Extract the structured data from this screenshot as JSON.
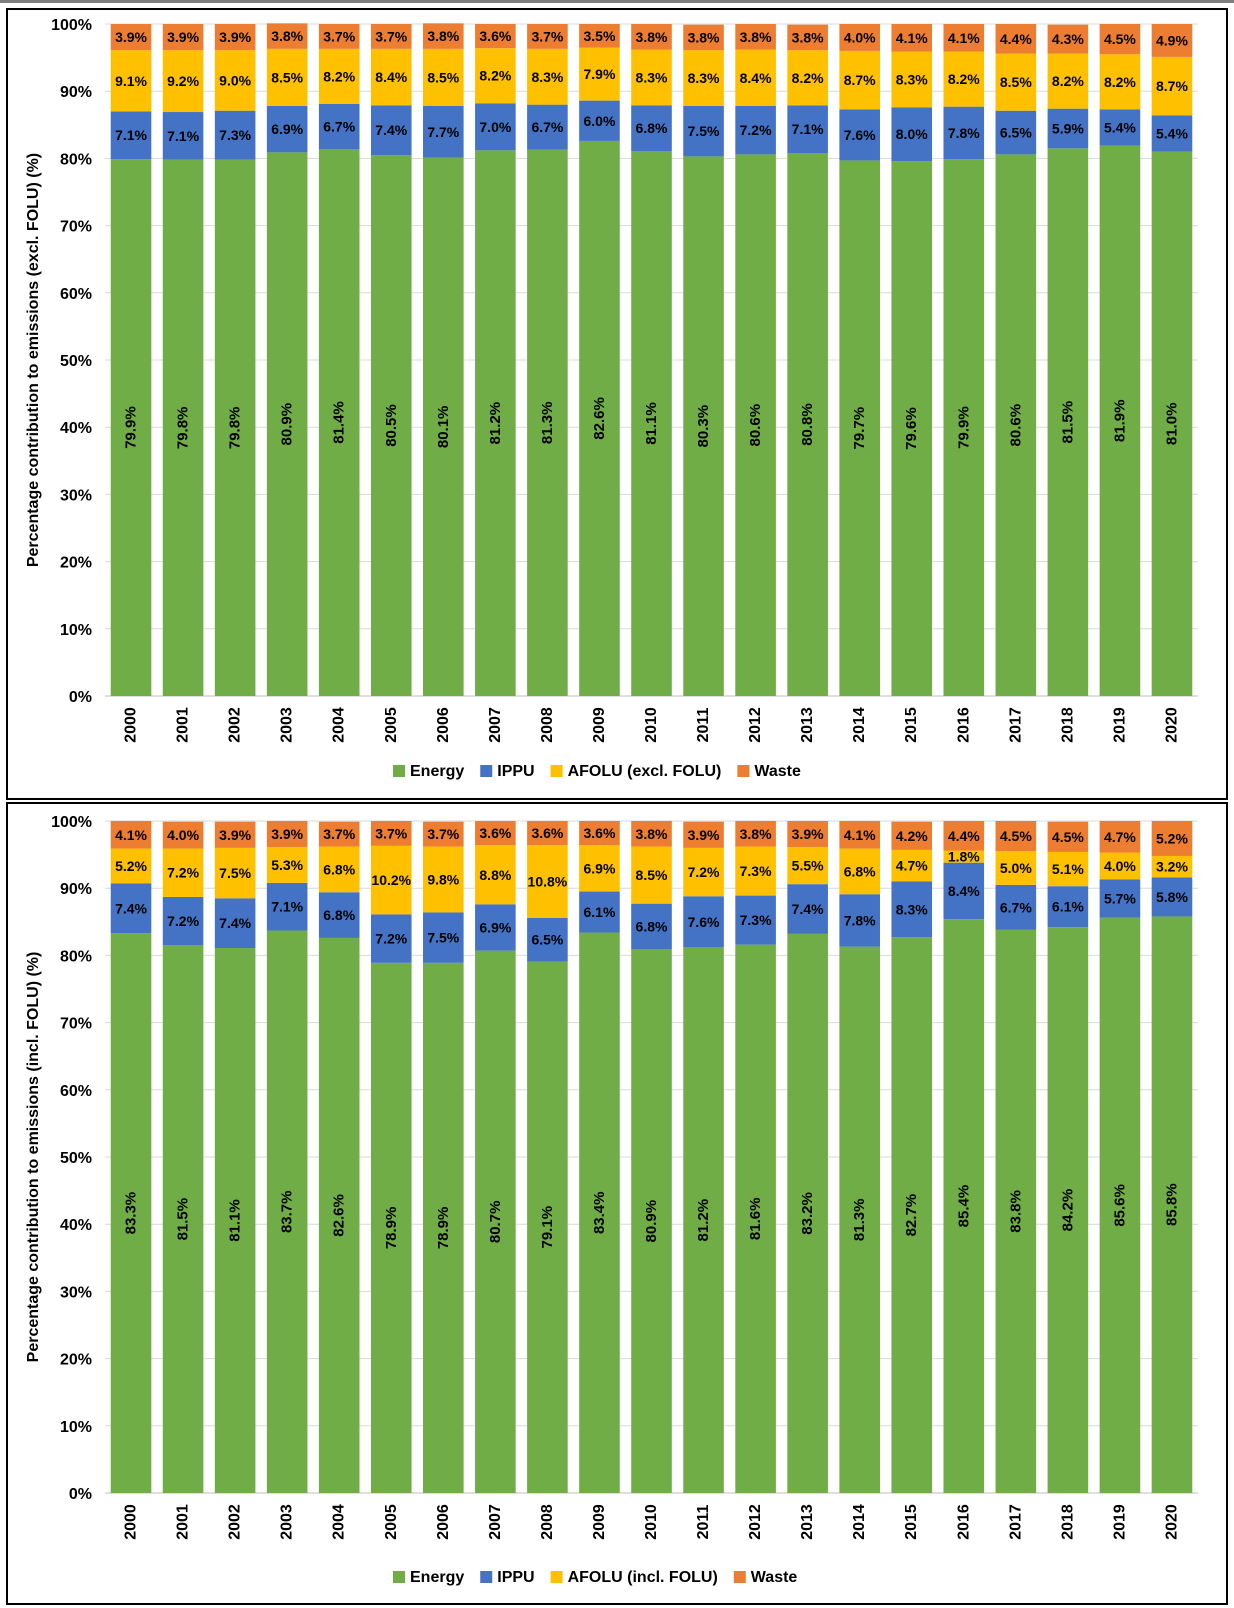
{
  "colors": {
    "Energy": "#70ad47",
    "IPPU": "#4472c4",
    "AFOLU": "#ffc000",
    "Waste": "#ed7d31"
  },
  "chart_data": [
    {
      "type": "bar",
      "stacked": true,
      "title": "",
      "xlabel": "",
      "ylabel": "Percentage contribution to emissions (excl. FOLU) (%)",
      "ylim": [
        0,
        100
      ],
      "yticks": [
        "0%",
        "10%",
        "20%",
        "30%",
        "40%",
        "50%",
        "60%",
        "70%",
        "80%",
        "90%",
        "100%"
      ],
      "legend": "bottom",
      "categories": [
        "2000",
        "2001",
        "2002",
        "2003",
        "2004",
        "2005",
        "2006",
        "2007",
        "2008",
        "2009",
        "2010",
        "2011",
        "2012",
        "2013",
        "2014",
        "2015",
        "2016",
        "2017",
        "2018",
        "2019",
        "2020"
      ],
      "series": [
        {
          "name": "Energy",
          "color": "#70ad47",
          "values": [
            79.9,
            79.8,
            79.8,
            80.9,
            81.4,
            80.5,
            80.1,
            81.2,
            81.3,
            82.6,
            81.1,
            80.3,
            80.6,
            80.8,
            79.7,
            79.6,
            79.9,
            80.6,
            81.5,
            81.9,
            81.0
          ]
        },
        {
          "name": "IPPU",
          "color": "#4472c4",
          "values": [
            7.1,
            7.1,
            7.3,
            6.9,
            6.7,
            7.4,
            7.7,
            7.0,
            6.7,
            6.0,
            6.8,
            7.5,
            7.2,
            7.1,
            7.6,
            8.0,
            7.8,
            6.5,
            5.9,
            5.4,
            5.4
          ]
        },
        {
          "name": "AFOLU (excl. FOLU)",
          "color": "#ffc000",
          "values": [
            9.1,
            9.2,
            9.0,
            8.5,
            8.2,
            8.4,
            8.5,
            8.2,
            8.3,
            7.9,
            8.3,
            8.3,
            8.4,
            8.2,
            8.7,
            8.3,
            8.2,
            8.5,
            8.2,
            8.2,
            8.7
          ]
        },
        {
          "name": "Waste",
          "color": "#ed7d31",
          "values": [
            3.9,
            3.9,
            3.9,
            3.8,
            3.7,
            3.7,
            3.8,
            3.6,
            3.7,
            3.5,
            3.8,
            3.8,
            3.8,
            3.8,
            4.0,
            4.1,
            4.1,
            4.4,
            4.3,
            4.5,
            4.9
          ]
        }
      ]
    },
    {
      "type": "bar",
      "stacked": true,
      "title": "",
      "xlabel": "",
      "ylabel": "Percentage contribution to emissions (incl. FOLU) (%)",
      "ylim": [
        0,
        100
      ],
      "yticks": [
        "0%",
        "10%",
        "20%",
        "30%",
        "40%",
        "50%",
        "60%",
        "70%",
        "80%",
        "90%",
        "100%"
      ],
      "legend": "bottom",
      "categories": [
        "2000",
        "2001",
        "2002",
        "2003",
        "2004",
        "2005",
        "2006",
        "2007",
        "2008",
        "2009",
        "2010",
        "2011",
        "2012",
        "2013",
        "2014",
        "2015",
        "2016",
        "2017",
        "2018",
        "2019",
        "2020"
      ],
      "series": [
        {
          "name": "Energy",
          "color": "#70ad47",
          "values": [
            83.3,
            81.5,
            81.1,
            83.7,
            82.6,
            78.9,
            78.9,
            80.7,
            79.1,
            83.4,
            80.9,
            81.2,
            81.6,
            83.2,
            81.3,
            82.7,
            85.4,
            83.8,
            84.2,
            85.6,
            85.8
          ]
        },
        {
          "name": "IPPU",
          "color": "#4472c4",
          "values": [
            7.4,
            7.2,
            7.4,
            7.1,
            6.8,
            7.2,
            7.5,
            6.9,
            6.5,
            6.1,
            6.8,
            7.6,
            7.3,
            7.4,
            7.8,
            8.3,
            8.4,
            6.7,
            6.1,
            5.7,
            5.8
          ]
        },
        {
          "name": "AFOLU (incl. FOLU)",
          "color": "#ffc000",
          "values": [
            5.2,
            7.2,
            7.5,
            5.3,
            6.8,
            10.2,
            9.8,
            8.8,
            10.8,
            6.9,
            8.5,
            7.2,
            7.3,
            5.5,
            6.8,
            4.7,
            1.8,
            5.0,
            5.1,
            4.0,
            3.2
          ]
        },
        {
          "name": "Waste",
          "color": "#ed7d31",
          "values": [
            4.1,
            4.0,
            3.9,
            3.9,
            3.7,
            3.7,
            3.7,
            3.6,
            3.6,
            3.6,
            3.8,
            3.9,
            3.8,
            3.9,
            4.1,
            4.2,
            4.4,
            4.5,
            4.5,
            4.7,
            5.2
          ]
        }
      ]
    }
  ]
}
